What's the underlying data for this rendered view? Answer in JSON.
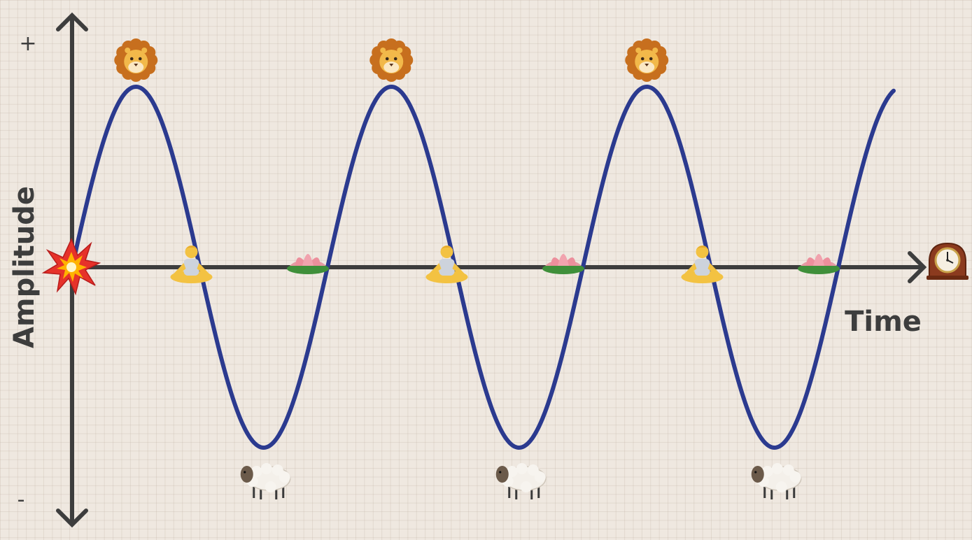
{
  "axes": {
    "y_label": "Amplitude",
    "x_label": "Time",
    "plus": "+",
    "minus": "-"
  },
  "colors": {
    "wave": "#2b3a8f",
    "axis": "#3d3d3d",
    "background": "#efe8e0"
  },
  "icons": {
    "peak": "lion-face-icon",
    "trough": "sheep-icon",
    "falling_zero": "person-meditating-icon",
    "rising_zero": "lotus-icon",
    "origin": "explosion-icon",
    "time_end": "mantel-clock-icon"
  },
  "wave": {
    "cycles_shown": 3.3
  }
}
